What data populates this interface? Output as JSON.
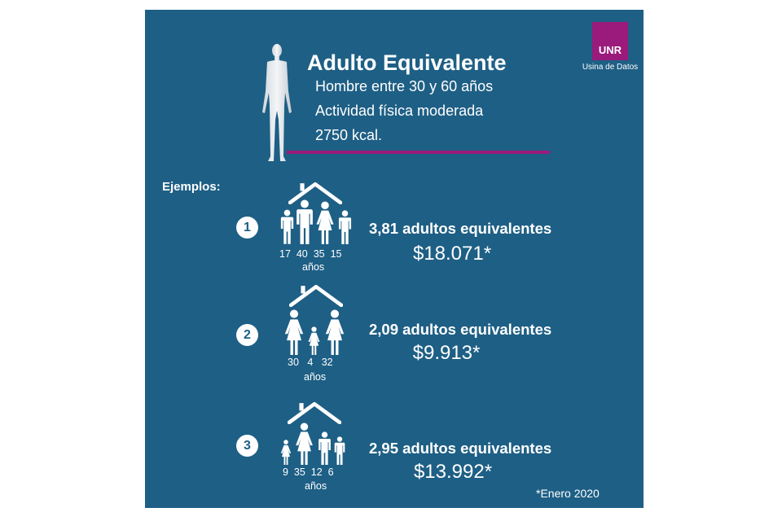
{
  "logo": {
    "name": "UNR",
    "subtitle": "Usina de Datos"
  },
  "header": {
    "title": "Adulto Equivalente",
    "lines": [
      "Hombre entre 30 y 60 años",
      "Actividad física moderada",
      "2750 kcal."
    ]
  },
  "examples_label": "Ejemplos:",
  "examples": [
    {
      "number": "1",
      "ages": [
        "17",
        "40",
        "35",
        "15"
      ],
      "unit": "años",
      "adults": "3,81 adultos equivalentes",
      "price": "$18.071*"
    },
    {
      "number": "2",
      "ages": [
        "30",
        "4",
        "32"
      ],
      "unit": "años",
      "adults": "2,09 adultos equivalentes",
      "price": "$9.913*"
    },
    {
      "number": "3",
      "ages": [
        "9",
        "35",
        "12",
        "6"
      ],
      "unit": "años",
      "adults": "2,95 adultos equivalentes",
      "price": "$13.992*"
    }
  ],
  "footnote": "*Enero 2020",
  "colors": {
    "background": "#1e5f85",
    "accent": "#9a1b7b"
  }
}
